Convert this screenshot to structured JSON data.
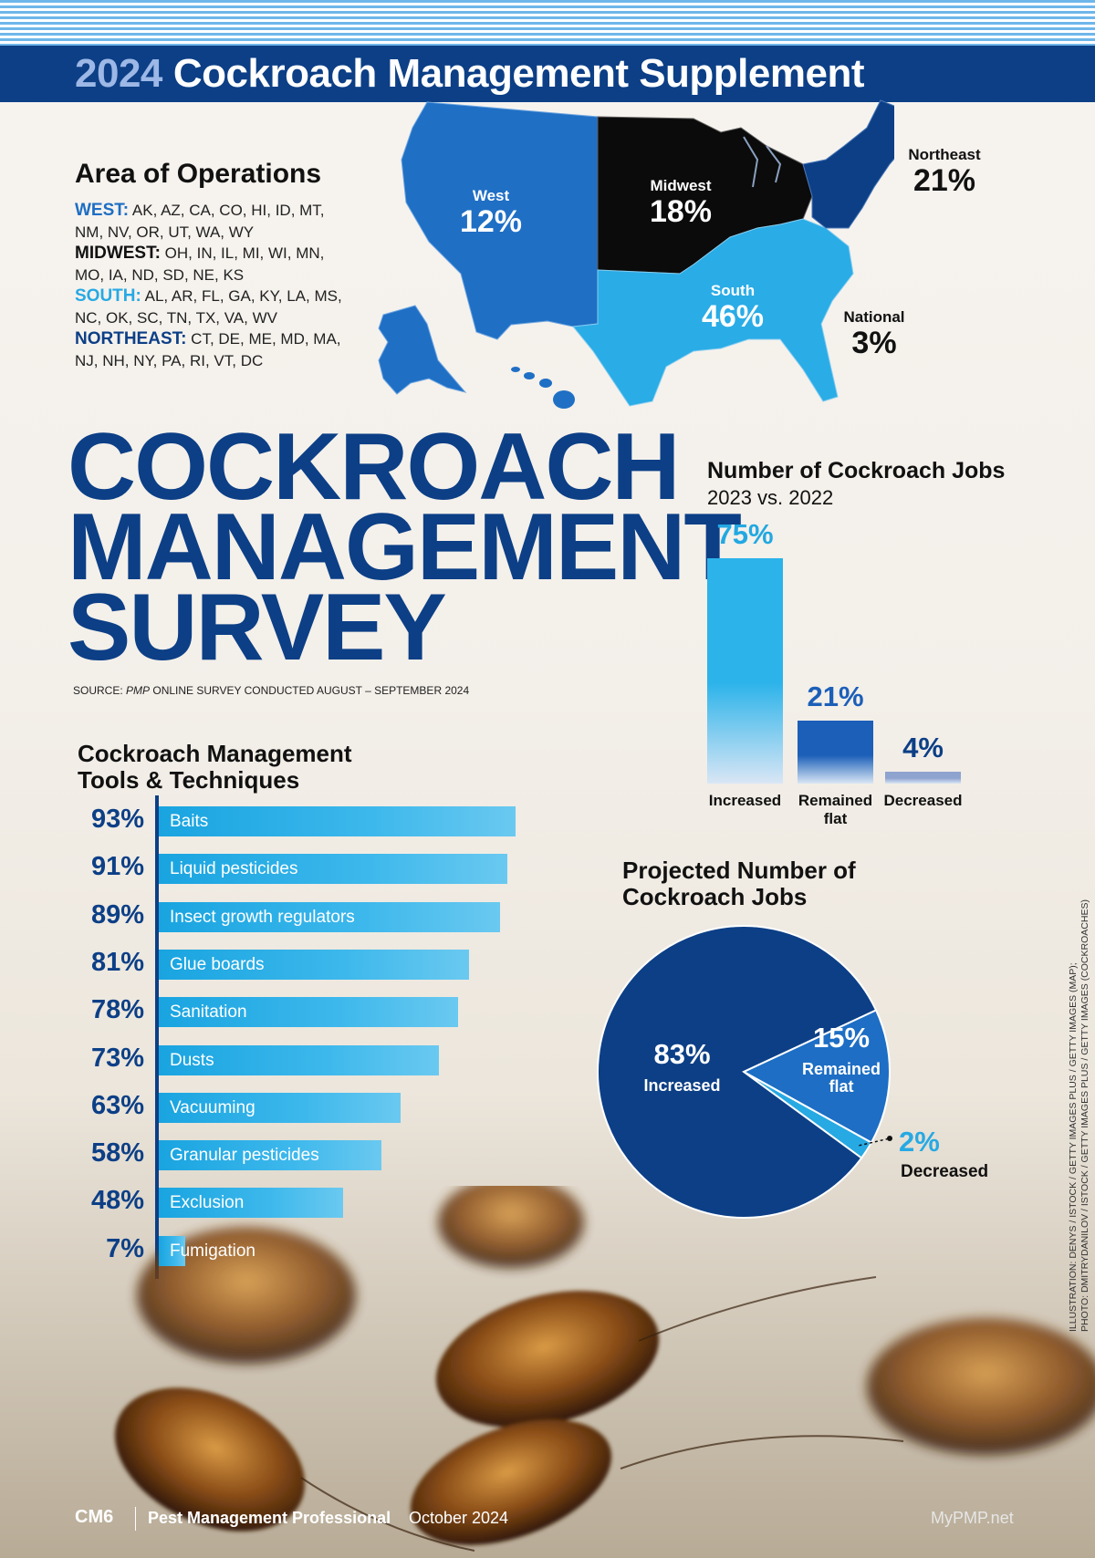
{
  "header": {
    "year": "2024",
    "title": "Cockroach Management Supplement"
  },
  "area_of_operations": {
    "heading": "Area of Operations",
    "regions": [
      {
        "name": "WEST:",
        "color": "#1d6ec4",
        "states_line1": " AK, AZ, CA, CO, HI, ID, MT,",
        "states_line2": "NM, NV, OR, UT, WA, WY"
      },
      {
        "name": "MIDWEST:",
        "color": "#111111",
        "states_line1": " OH, IN, IL, MI, WI, MN,",
        "states_line2": "MO, IA, ND, SD, NE, KS"
      },
      {
        "name": "SOUTH:",
        "color": "#27a9e3",
        "states_line1": " AL, AR, FL, GA, KY, LA, MS,",
        "states_line2": "NC, OK, SC, TN, TX, VA, WV"
      },
      {
        "name": "NORTHEAST:",
        "color": "#0c3f86",
        "states_line1": " CT, DE, ME, MD, MA,",
        "states_line2": "NJ, NH, NY, PA, RI, VT, DC"
      }
    ]
  },
  "map_labels": {
    "west": {
      "name": "West",
      "value": "12%"
    },
    "midwest": {
      "name": "Midwest",
      "value": "18%"
    },
    "south": {
      "name": "South",
      "value": "46%"
    },
    "northeast": {
      "name": "Northeast",
      "value": "21%"
    },
    "national": {
      "name": "National",
      "value": "3%"
    }
  },
  "title": {
    "line1": "COCKROACH",
    "line2": "MANAGEMENT",
    "line3": "SURVEY"
  },
  "source": {
    "prefix": "SOURCE: ",
    "pub": "PMP",
    "rest": " ONLINE SURVEY CONDUCTED AUGUST – SEPTEMBER 2024"
  },
  "credits": {
    "line1": "ILLUSTRATION: DENYS / ISTOCK / GETTY IMAGES PLUS / GETTY IMAGES (MAP);",
    "line2": "PHOTO: DMITRYDANILOV / ISTOCK / GETTY IMAGES PLUS / GETTY IMAGES (COCKROACHES)"
  },
  "footer": {
    "page": "CM6",
    "magazine": "Pest Management Professional",
    "issue": "October 2024",
    "site": "MyPMP.net"
  },
  "chart_data": [
    {
      "type": "bar",
      "orientation": "horizontal",
      "title": "Cockroach Management Tools & Techniques",
      "title_line1": "Cockroach Management",
      "title_line2": "Tools & Techniques",
      "categories": [
        "Baits",
        "Liquid pesticides",
        "Insect growth regulators",
        "Glue boards",
        "Sanitation",
        "Dusts",
        "Vacuuming",
        "Granular pesticides",
        "Exclusion",
        "Fumigation"
      ],
      "values": [
        93,
        91,
        89,
        81,
        78,
        73,
        63,
        58,
        48,
        7
      ],
      "labels": [
        "93%",
        "91%",
        "89%",
        "81%",
        "78%",
        "73%",
        "63%",
        "58%",
        "48%",
        "7%"
      ],
      "unit": "%"
    },
    {
      "type": "bar",
      "title": "Number of Cockroach Jobs",
      "subtitle": "2023 vs. 2022",
      "categories": [
        "Increased",
        "Remained flat",
        "Decreased"
      ],
      "category_lines": [
        [
          "Increased"
        ],
        [
          "Remained",
          "flat"
        ],
        [
          "Decreased"
        ]
      ],
      "values": [
        75,
        21,
        4
      ],
      "labels": [
        "75%",
        "21%",
        "4%"
      ],
      "colors": [
        "#2bb3ea",
        "#1b5fb8",
        "#8fa3cf"
      ],
      "label_colors": [
        "#22a8e2",
        "#1b5fb8",
        "#0c3f86"
      ],
      "unit": "%"
    },
    {
      "type": "pie",
      "title": "Projected Number of Cockroach Jobs",
      "title_line1": "Projected Number of",
      "title_line2": "Cockroach Jobs",
      "categories": [
        "Increased",
        "Remained flat",
        "Decreased"
      ],
      "category_lines": [
        [
          "Increased"
        ],
        [
          "Remained",
          "flat"
        ],
        [
          "Decreased"
        ]
      ],
      "values": [
        83,
        15,
        2
      ],
      "labels": [
        "83%",
        "15%",
        "2%"
      ],
      "colors": [
        "#0c3f86",
        "#1d6ec4",
        "#27a9e3"
      ]
    }
  ]
}
